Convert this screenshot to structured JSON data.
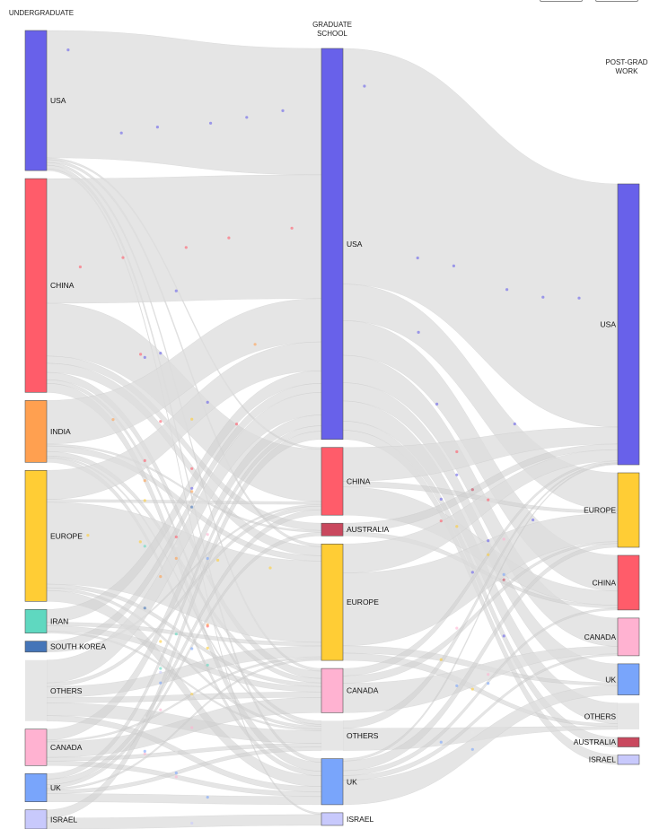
{
  "header": {
    "buttons": [
      "",
      ""
    ]
  },
  "columns": [
    {
      "id": "under",
      "title_lines": [
        "UNDERGRADUATE"
      ]
    },
    {
      "id": "grad",
      "title_lines": [
        "GRADUATE",
        "SCHOOL"
      ]
    },
    {
      "id": "post",
      "title_lines": [
        "POST-GRAD",
        "WORK"
      ]
    }
  ],
  "colors": {
    "USA": "#6861ea",
    "CHINA": "#ff5c6a",
    "INDIA": "#ffa050",
    "EUROPE": "#ffcd35",
    "IRAN": "#5fd8c0",
    "SOUTH KOREA": "#4575b8",
    "OTHERS": "#e6e6e6",
    "CANADA": "#ffb2d1",
    "UK": "#79a5fb",
    "ISRAEL": "#c8c9fc",
    "AUSTRALIA": "#c9485e"
  },
  "nodes": {
    "under": [
      {
        "name": "USA",
        "label": "USA",
        "value": 154
      },
      {
        "name": "CHINA",
        "label": "CHINA",
        "value": 235
      },
      {
        "name": "INDIA",
        "label": "INDIA",
        "value": 68
      },
      {
        "name": "EUROPE",
        "label": "EUROPE",
        "value": 144
      },
      {
        "name": "IRAN",
        "label": "IRAN",
        "value": 26
      },
      {
        "name": "SOUTH KOREA",
        "label": "SOUTH KOREA",
        "value": 12
      },
      {
        "name": "OTHERS",
        "label": "OTHERS",
        "value": 67
      },
      {
        "name": "CANADA",
        "label": "CANADA",
        "value": 40
      },
      {
        "name": "UK",
        "label": "UK",
        "value": 31
      },
      {
        "name": "ISRAEL",
        "label": "ISRAEL",
        "value": 21
      }
    ],
    "grad": [
      {
        "name": "USA",
        "label": "USA",
        "value": 433
      },
      {
        "name": "CHINA",
        "label": "CHINA",
        "value": 75
      },
      {
        "name": "AUSTRALIA",
        "label": "AUSTRALIA",
        "value": 14
      },
      {
        "name": "EUROPE",
        "label": "EUROPE",
        "value": 129
      },
      {
        "name": "CANADA",
        "label": "CANADA",
        "value": 49
      },
      {
        "name": "OTHERS",
        "label": "OTHERS",
        "value": 33
      },
      {
        "name": "UK",
        "label": "UK",
        "value": 51
      },
      {
        "name": "ISRAEL",
        "label": "ISRAEL",
        "value": 14
      }
    ],
    "post": [
      {
        "name": "USA",
        "label": "USA",
        "value": 298
      },
      {
        "name": "EUROPE",
        "label": "EUROPE",
        "value": 79
      },
      {
        "name": "CHINA",
        "label": "CHINA",
        "value": 58
      },
      {
        "name": "CANADA",
        "label": "CANADA",
        "value": 40
      },
      {
        "name": "UK",
        "label": "UK",
        "value": 33
      },
      {
        "name": "OTHERS",
        "label": "OTHERS",
        "value": 28
      },
      {
        "name": "AUSTRALIA",
        "label": "AUSTRALIA",
        "value": 10
      },
      {
        "name": "ISRAEL",
        "label": "ISRAEL",
        "value": 10
      }
    ]
  },
  "links_stage1": [
    [
      "USA",
      "USA",
      140
    ],
    [
      "USA",
      "UK",
      4
    ],
    [
      "USA",
      "CANADA",
      3
    ],
    [
      "USA",
      "EUROPE",
      3
    ],
    [
      "USA",
      "CHINA",
      2
    ],
    [
      "USA",
      "ISRAEL",
      2
    ],
    [
      "CHINA",
      "USA",
      137
    ],
    [
      "CHINA",
      "CHINA",
      58
    ],
    [
      "CHINA",
      "AUSTRALIA",
      8
    ],
    [
      "CHINA",
      "EUROPE",
      10
    ],
    [
      "CHINA",
      "CANADA",
      8
    ],
    [
      "CHINA",
      "UK",
      10
    ],
    [
      "CHINA",
      "OTHERS",
      4
    ],
    [
      "INDIA",
      "USA",
      48
    ],
    [
      "INDIA",
      "EUROPE",
      6
    ],
    [
      "INDIA",
      "CANADA",
      5
    ],
    [
      "INDIA",
      "UK",
      5
    ],
    [
      "INDIA",
      "AUSTRALIA",
      2
    ],
    [
      "INDIA",
      "OTHERS",
      2
    ],
    [
      "EUROPE",
      "USA",
      32
    ],
    [
      "EUROPE",
      "EUROPE",
      90
    ],
    [
      "EUROPE",
      "UK",
      12
    ],
    [
      "EUROPE",
      "CANADA",
      4
    ],
    [
      "EUROPE",
      "OTHERS",
      3
    ],
    [
      "EUROPE",
      "CHINA",
      3
    ],
    [
      "IRAN",
      "USA",
      14
    ],
    [
      "IRAN",
      "CANADA",
      6
    ],
    [
      "IRAN",
      "EUROPE",
      4
    ],
    [
      "IRAN",
      "OTHERS",
      2
    ],
    [
      "SOUTH KOREA",
      "USA",
      10
    ],
    [
      "SOUTH KOREA",
      "CHINA",
      2
    ],
    [
      "OTHERS",
      "USA",
      25
    ],
    [
      "OTHERS",
      "EUROPE",
      12
    ],
    [
      "OTHERS",
      "OTHERS",
      14
    ],
    [
      "OTHERS",
      "CANADA",
      6
    ],
    [
      "OTHERS",
      "UK",
      6
    ],
    [
      "OTHERS",
      "CHINA",
      4
    ],
    [
      "CANADA",
      "USA",
      12
    ],
    [
      "CANADA",
      "CANADA",
      17
    ],
    [
      "CANADA",
      "UK",
      5
    ],
    [
      "CANADA",
      "EUROPE",
      2
    ],
    [
      "CANADA",
      "OTHERS",
      4
    ],
    [
      "UK",
      "USA",
      6
    ],
    [
      "UK",
      "UK",
      9
    ],
    [
      "UK",
      "EUROPE",
      2
    ],
    [
      "UK",
      "OTHERS",
      4
    ],
    [
      "UK",
      "CHINA",
      6
    ],
    [
      "UK",
      "AUSTRALIA",
      4
    ],
    [
      "ISRAEL",
      "USA",
      9
    ],
    [
      "ISRAEL",
      "ISRAEL",
      12
    ]
  ],
  "links_stage2": [
    [
      "USA",
      "USA",
      258
    ],
    [
      "USA",
      "EUROPE",
      40
    ],
    [
      "USA",
      "CHINA",
      38
    ],
    [
      "USA",
      "CANADA",
      30
    ],
    [
      "USA",
      "UK",
      20
    ],
    [
      "USA",
      "OTHERS",
      22
    ],
    [
      "USA",
      "AUSTRALIA",
      10
    ],
    [
      "USA",
      "ISRAEL",
      10
    ],
    [
      "CHINA",
      "USA",
      18
    ],
    [
      "CHINA",
      "CHINA",
      15
    ],
    [
      "CHINA",
      "EUROPE",
      3
    ],
    [
      "AUSTRALIA",
      "USA",
      6
    ],
    [
      "AUSTRALIA",
      "CHINA",
      3
    ],
    [
      "EUROPE",
      "USA",
      12
    ],
    [
      "EUROPE",
      "EUROPE",
      30
    ],
    [
      "EUROPE",
      "UK",
      3
    ],
    [
      "EUROPE",
      "OTHERS",
      3
    ],
    [
      "CANADA",
      "USA",
      2
    ],
    [
      "CANADA",
      "CANADA",
      8
    ],
    [
      "CANADA",
      "EUROPE",
      2
    ],
    [
      "OTHERS",
      "USA",
      1
    ],
    [
      "OTHERS",
      "OTHERS",
      3
    ],
    [
      "UK",
      "USA",
      1
    ],
    [
      "UK",
      "UK",
      10
    ],
    [
      "UK",
      "EUROPE",
      4
    ],
    [
      "UK",
      "CHINA",
      2
    ],
    [
      "UK",
      "CANADA",
      2
    ],
    [
      "ISRAEL",
      "ISRAEL",
      0
    ]
  ]
}
